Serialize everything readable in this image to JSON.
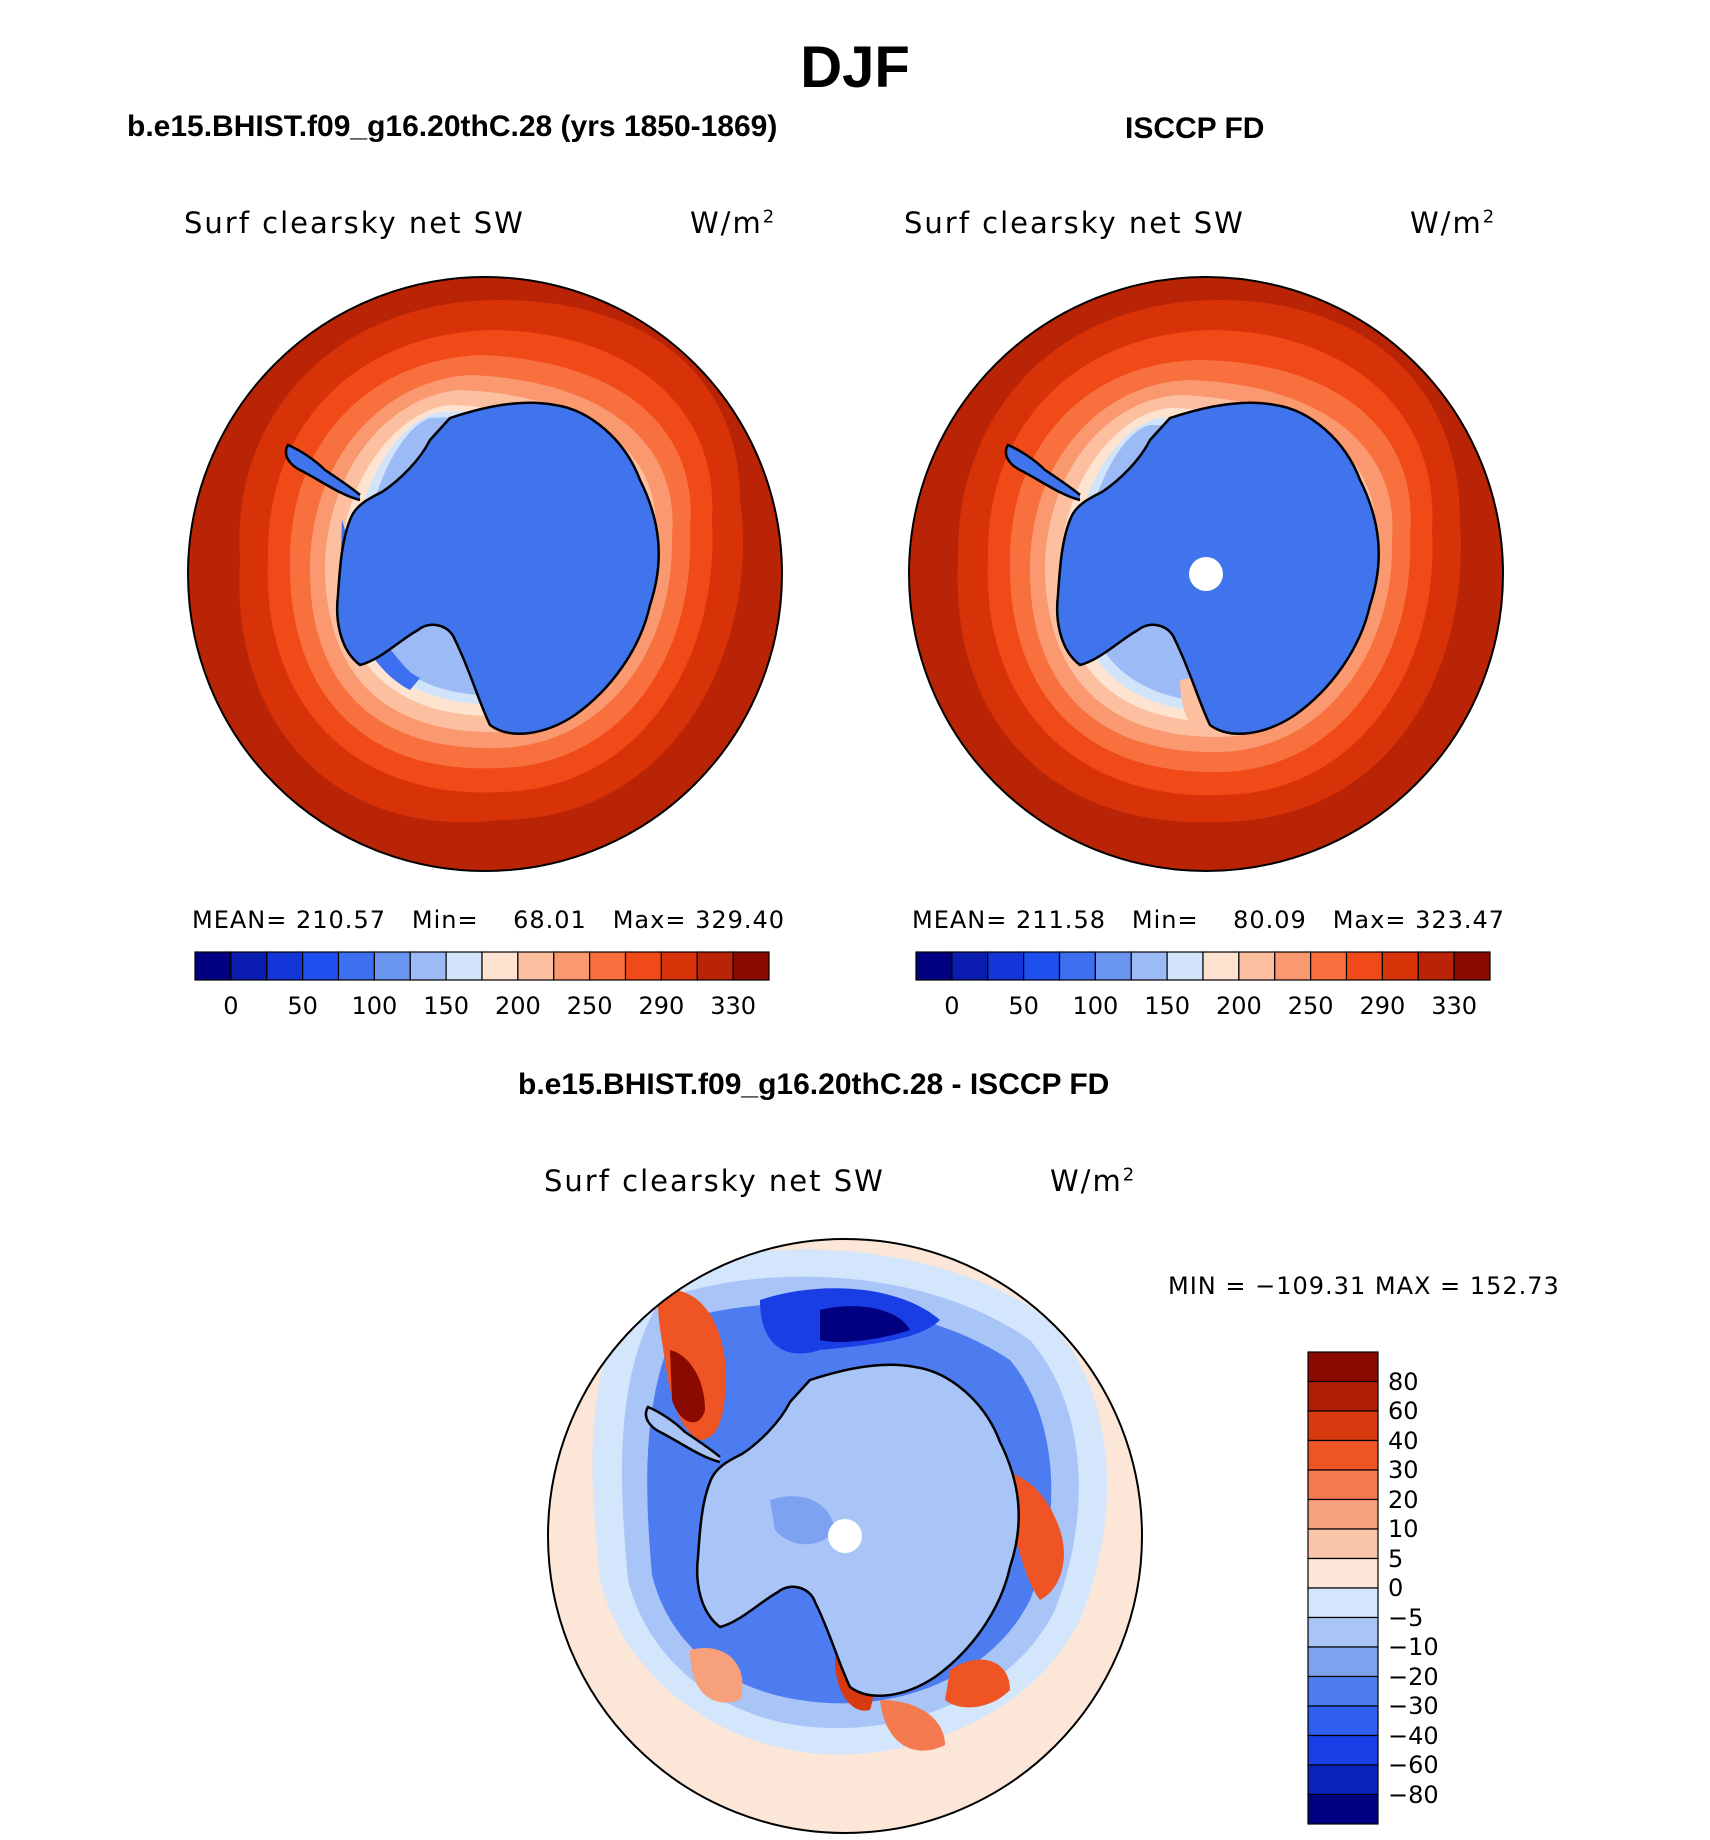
{
  "figure": {
    "season": "DJF",
    "panel_left_title": "b.e15.BHIST.f09_g16.20thC.28 (yrs 1850-1869)",
    "panel_right_title": "ISCCP FD",
    "panel_diff_title": "b.e15.BHIST.f09_g16.20thC.28 - ISCCP FD",
    "variable": "Surf clearsky net SW",
    "units_base": "W/m",
    "units_exp": "2"
  },
  "colors": {
    "abs_palette": [
      "#000080",
      "#0a1db0",
      "#1336d8",
      "#1e50f0",
      "#3c70f0",
      "#6a96f0",
      "#9cbaf5",
      "#d2e4fa",
      "#fde3d0",
      "#fcc0a0",
      "#fa9870",
      "#f7703e",
      "#f04a18",
      "#d83208",
      "#b82405",
      "#8a0a00"
    ],
    "diff_palette": [
      "#000080",
      "#0a22b8",
      "#1a3ee6",
      "#2f5ef0",
      "#4d7cf0",
      "#7ea2f2",
      "#a9c4f7",
      "#d4e6fb",
      "#fbe6d8",
      "#f9c5a8",
      "#f7a07c",
      "#f47a50",
      "#ef5424",
      "#d83a10",
      "#b01e05",
      "#8a0a00"
    ],
    "continent": "#3f74ec",
    "outline": "#000000"
  },
  "chart_data": [
    {
      "type": "heatmap",
      "title": "b.e15.BHIST.f09_g16.20thC.28 (yrs 1850-1869)",
      "variable": "Surf clearsky net SW",
      "units": "W/m2",
      "projection": "south-polar-stereographic",
      "stats": {
        "mean_label": "MEAN=",
        "mean": "210.57",
        "min_label": "Min=",
        "min": "68.01",
        "max_label": "Max=",
        "max": "329.40"
      },
      "colorbar_ticks": [
        "0",
        "50",
        "100",
        "150",
        "200",
        "250",
        "290",
        "330"
      ]
    },
    {
      "type": "heatmap",
      "title": "ISCCP FD",
      "variable": "Surf clearsky net SW",
      "units": "W/m2",
      "projection": "south-polar-stereographic",
      "stats": {
        "mean_label": "MEAN=",
        "mean": "211.58",
        "min_label": "Min=",
        "min": "80.09",
        "max_label": "Max=",
        "max": "323.47"
      },
      "colorbar_ticks": [
        "0",
        "50",
        "100",
        "150",
        "200",
        "250",
        "290",
        "330"
      ]
    },
    {
      "type": "heatmap",
      "title": "b.e15.BHIST.f09_g16.20thC.28 - ISCCP FD",
      "variable": "Surf clearsky net SW",
      "units": "W/m2",
      "projection": "south-polar-stereographic",
      "stats": {
        "min_label": "MIN =",
        "min": "−109.31",
        "max_label": "MAX =",
        "max": "152.73"
      },
      "colorbar_ticks": [
        "80",
        "60",
        "40",
        "30",
        "20",
        "10",
        "5",
        "0",
        "−5",
        "−10",
        "−20",
        "−30",
        "−40",
        "−60",
        "−80"
      ]
    }
  ]
}
